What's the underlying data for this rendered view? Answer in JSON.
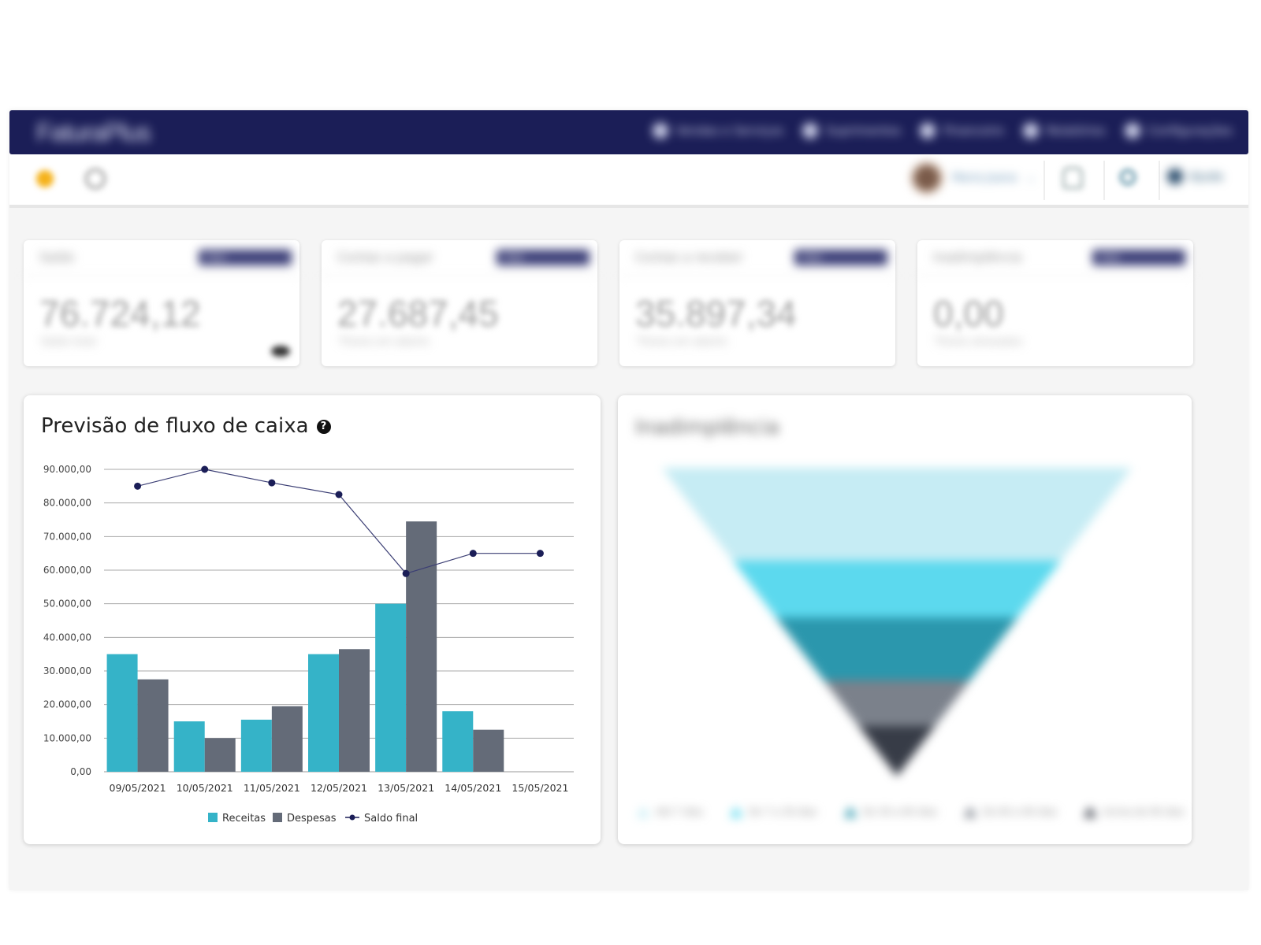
{
  "app": {
    "brand": "FaturaPlus",
    "nav": [
      {
        "label": "Vendas e Serviços",
        "icon": "sales-icon"
      },
      {
        "label": "Suprimentos",
        "icon": "supplies-icon"
      },
      {
        "label": "Financeiro",
        "icon": "finance-icon"
      },
      {
        "label": "Relatórios",
        "icon": "reports-icon"
      },
      {
        "label": "Configurações",
        "icon": "settings-icon"
      }
    ],
    "toolbar": {
      "user_name": "Maria Joana",
      "help_label": "Ajuda"
    }
  },
  "kpis": [
    {
      "label": "Saldo",
      "badge": "Hoje",
      "value": "76.724,12",
      "sub": "Saldo total"
    },
    {
      "label": "Contas a pagar",
      "badge": "Hoje",
      "value": "27.687,45",
      "sub": "Títulos em aberto"
    },
    {
      "label": "Contas a receber",
      "badge": "Hoje",
      "value": "35.897,34",
      "sub": "Títulos em aberto"
    },
    {
      "label": "Inadimplência",
      "badge": "Hoje",
      "value": "0,00",
      "sub": "Títulos atrasados"
    }
  ],
  "cashflow": {
    "title": "Previsão de fluxo de caixa",
    "help_glyph": "?"
  },
  "funnel": {
    "title": "Inadimplência",
    "legend": [
      "Até 7 dias",
      "De 7 a 30 dias",
      "De 30 a 60 dias",
      "De 60 a 90 dias",
      "Acima de 90 dias"
    ],
    "colors": [
      "#c6ecf4",
      "#5cd9ee",
      "#2b97ad",
      "#7b818b",
      "#373c47"
    ]
  },
  "chart_data": {
    "type": "bar",
    "categories": [
      "09/05/2021",
      "10/05/2021",
      "11/05/2021",
      "12/05/2021",
      "13/05/2021",
      "14/05/2021",
      "15/05/2021"
    ],
    "series": [
      {
        "name": "Receitas",
        "type": "bar",
        "color": "#35b3c8",
        "values": [
          35000,
          15000,
          15500,
          35000,
          50000,
          18000,
          0
        ]
      },
      {
        "name": "Despesas",
        "type": "bar",
        "color": "#646b78",
        "values": [
          27500,
          10000,
          19500,
          36500,
          74500,
          12500,
          0
        ]
      },
      {
        "name": "Saldo final",
        "type": "line",
        "color": "#1b1e57",
        "values": [
          85000,
          90000,
          86000,
          82500,
          59000,
          65000,
          65000
        ]
      }
    ],
    "yticks": [
      "0,00",
      "10.000,00",
      "20.000,00",
      "30.000,00",
      "40.000,00",
      "50.000,00",
      "60.000,00",
      "70.000,00",
      "80.000,00",
      "90.000,00"
    ],
    "ylim": [
      0,
      90000
    ],
    "grid": true,
    "legend_position": "bottom"
  }
}
